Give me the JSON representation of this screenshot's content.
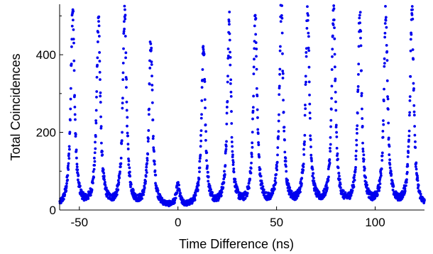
{
  "chart_data": {
    "type": "scatter",
    "xlabel": "Time Difference (ns)",
    "ylabel": "Total Coincidences",
    "xlim": [
      -60,
      125
    ],
    "ylim": [
      0,
      530
    ],
    "xticks": [
      -50,
      0,
      50,
      100
    ],
    "yticks": [
      0,
      200,
      400
    ],
    "xtick_labels": [
      "-50",
      "0",
      "50",
      "100"
    ],
    "ytick_labels": [
      "0",
      "200",
      "400"
    ],
    "grid": false,
    "legend": "none",
    "marker_color": "#0000ee",
    "baseline": 3,
    "peak_width_ns": 1.1,
    "sampling_ns": 0.1,
    "peaks": [
      {
        "x": -53.4,
        "height": 518
      },
      {
        "x": -40.3,
        "height": 488
      },
      {
        "x": -27.0,
        "height": 497
      },
      {
        "x": -13.8,
        "height": 423
      },
      {
        "x": 0.0,
        "height": 50
      },
      {
        "x": 12.9,
        "height": 416
      },
      {
        "x": 26.0,
        "height": 472
      },
      {
        "x": 39.2,
        "height": 485
      },
      {
        "x": 52.4,
        "height": 520
      },
      {
        "x": 65.7,
        "height": 526
      },
      {
        "x": 78.9,
        "height": 503
      },
      {
        "x": 92.2,
        "height": 502
      },
      {
        "x": 105.4,
        "height": 505
      },
      {
        "x": 118.6,
        "height": 513
      }
    ]
  }
}
